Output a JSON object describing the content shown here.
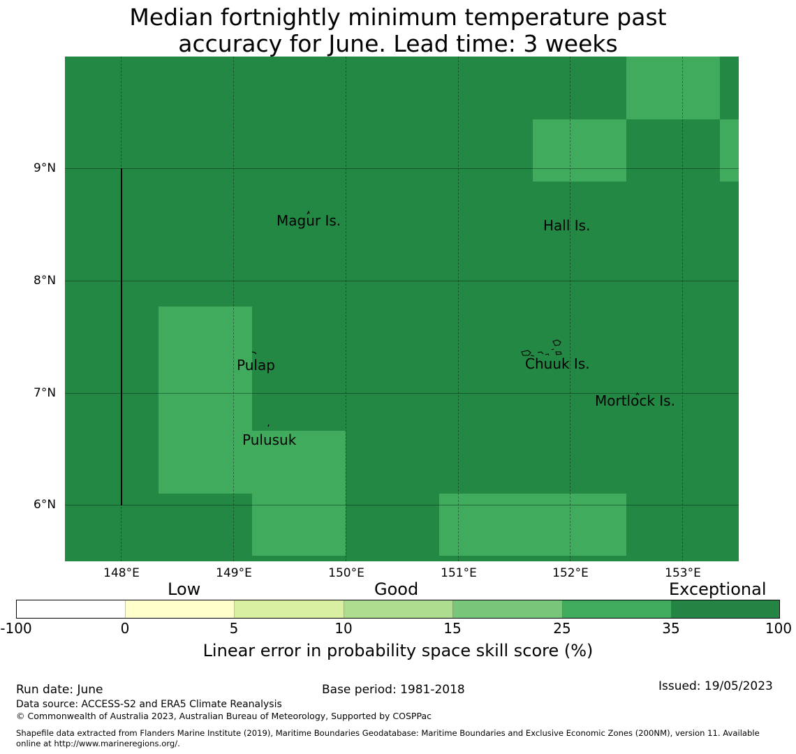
{
  "title": {
    "line1": "Median fortnightly minimum temperature past",
    "line2": "accuracy for June. Lead time: 3 weeks"
  },
  "map": {
    "x_ticks": [
      "148°E",
      "149°E",
      "150°E",
      "151°E",
      "152°E",
      "153°E"
    ],
    "y_ticks": [
      "9°N",
      "8°N",
      "7°N",
      "6°N"
    ],
    "colors": {
      "exceptional": "#238843",
      "band_25_35": "#40ab5c"
    },
    "places": [
      {
        "name": "Magur Is."
      },
      {
        "name": "Hall Is."
      },
      {
        "name": "Pulap"
      },
      {
        "name": "Chuuk Is."
      },
      {
        "name": "Mortlock Is."
      },
      {
        "name": "Pulusuk"
      }
    ]
  },
  "colorbar": {
    "categories": [
      "Low",
      "Good",
      "Exceptional"
    ],
    "ticks": [
      "-100",
      "0",
      "5",
      "10",
      "15",
      "25",
      "35",
      "100"
    ],
    "colors": [
      "#ffffff",
      "#ffffcc",
      "#d9f0a3",
      "#addd8e",
      "#78c679",
      "#41ab5d",
      "#238443"
    ],
    "label": "Linear error in probability space skill score (%)"
  },
  "footer": {
    "run_date": "Run date: June",
    "base_period": "Base period: 1981-2018",
    "issued": "Issued: 19/05/2023",
    "data_source": "Data source: ACCESS-S2 and ERA5 Climate Reanalysis",
    "copyright": "© Commonwealth of Australia 2023, Australian Bureau of Meteorology, Supported by COSPPac",
    "shapefile_line1": "Shapefile data extracted from Flanders Marine Institute (2019), Maritime Boundaries Geodatabase: Maritime Boundaries and Exclusive Economic Zones (200NM), version 11. Available",
    "shapefile_line2": "online at http://www.marineregions.org/."
  }
}
